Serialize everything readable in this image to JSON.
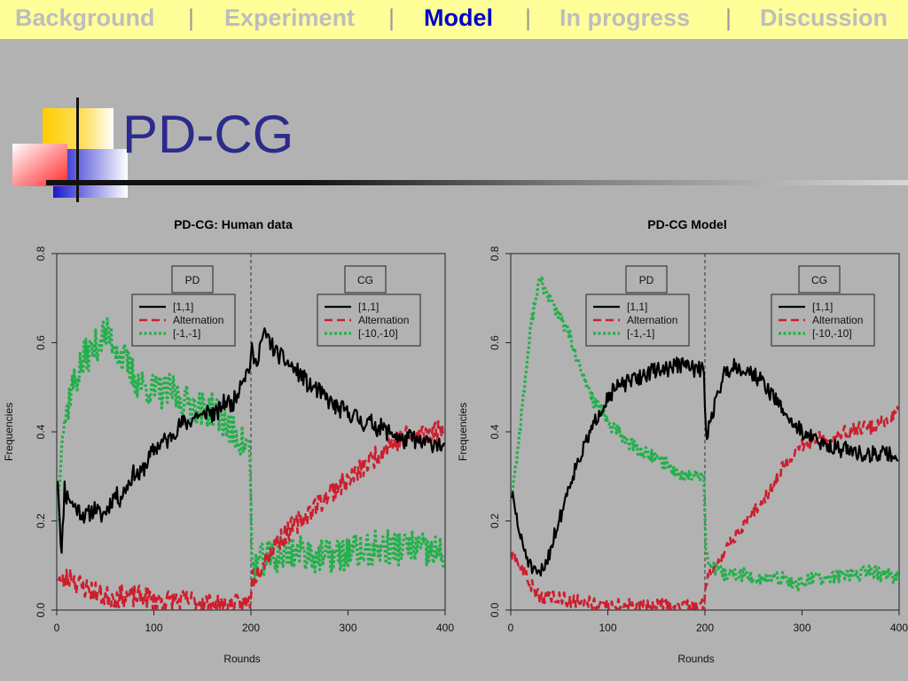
{
  "nav": {
    "items": [
      "Background",
      "Experiment",
      "Model",
      "In progress",
      "Discussion"
    ],
    "active": "Model",
    "separator": "|"
  },
  "slide": {
    "title": "PD-CG"
  },
  "colors": {
    "series1": "#000000",
    "series2": "#cc1f2e",
    "series3": "#22b04a",
    "nav_bg": "#ffff99",
    "nav_active": "#0000cc"
  },
  "chart_data": [
    {
      "type": "line",
      "title": "PD-CG: Human data",
      "xlabel": "Rounds",
      "ylabel": "Frequencies",
      "xlim": [
        0,
        400
      ],
      "ylim": [
        0,
        0.8
      ],
      "xticks": [
        0,
        100,
        200,
        300,
        400
      ],
      "yticks": [
        0.0,
        0.2,
        0.4,
        0.6,
        0.8
      ],
      "divider_x": 200,
      "phase_labels": [
        "PD",
        "CG"
      ],
      "legend_pd": [
        "[1,1]",
        "Alternation",
        "[-1,-1]"
      ],
      "legend_cg": [
        "[1,1]",
        "Alternation",
        "[-10,-10]"
      ],
      "series": [
        {
          "name": "[1,1]",
          "color": "#000000",
          "dash": "solid",
          "noise": 0.02,
          "seed": 11,
          "x": [
            1,
            5,
            8,
            10,
            12,
            15,
            20,
            25,
            30,
            35,
            40,
            45,
            50,
            55,
            60,
            65,
            70,
            75,
            80,
            85,
            90,
            95,
            100,
            105,
            110,
            115,
            120,
            125,
            130,
            135,
            140,
            145,
            150,
            155,
            160,
            165,
            170,
            175,
            180,
            185,
            190,
            195,
            199,
            201,
            205,
            210,
            215,
            220,
            225,
            230,
            235,
            240,
            245,
            250,
            255,
            260,
            265,
            270,
            275,
            280,
            285,
            290,
            295,
            300,
            305,
            310,
            315,
            320,
            325,
            330,
            335,
            340,
            345,
            350,
            355,
            360,
            365,
            370,
            375,
            380,
            385,
            390,
            395,
            399
          ],
          "y": [
            0.3,
            0.12,
            0.28,
            0.25,
            0.26,
            0.24,
            0.23,
            0.22,
            0.21,
            0.22,
            0.23,
            0.21,
            0.22,
            0.24,
            0.26,
            0.25,
            0.27,
            0.29,
            0.31,
            0.3,
            0.32,
            0.34,
            0.36,
            0.37,
            0.38,
            0.38,
            0.4,
            0.41,
            0.42,
            0.42,
            0.43,
            0.44,
            0.43,
            0.45,
            0.44,
            0.44,
            0.46,
            0.47,
            0.46,
            0.48,
            0.52,
            0.53,
            0.55,
            0.58,
            0.55,
            0.6,
            0.62,
            0.6,
            0.58,
            0.57,
            0.56,
            0.55,
            0.54,
            0.53,
            0.52,
            0.5,
            0.5,
            0.49,
            0.48,
            0.47,
            0.46,
            0.45,
            0.45,
            0.44,
            0.44,
            0.43,
            0.42,
            0.42,
            0.42,
            0.41,
            0.41,
            0.4,
            0.4,
            0.39,
            0.38,
            0.38,
            0.39,
            0.38,
            0.37,
            0.38,
            0.37,
            0.38,
            0.37,
            0.36
          ]
        },
        {
          "name": "Alternation",
          "color": "#cc1f2e",
          "dash": "dashed",
          "noise": 0.025,
          "seed": 23,
          "x": [
            1,
            5,
            10,
            15,
            20,
            30,
            40,
            50,
            60,
            70,
            80,
            90,
            100,
            110,
            120,
            130,
            140,
            150,
            160,
            170,
            180,
            190,
            199,
            201,
            205,
            210,
            215,
            220,
            225,
            230,
            240,
            250,
            260,
            270,
            280,
            290,
            300,
            310,
            320,
            330,
            340,
            350,
            360,
            370,
            380,
            390,
            399
          ],
          "y": [
            0.08,
            0.06,
            0.07,
            0.08,
            0.06,
            0.05,
            0.04,
            0.03,
            0.03,
            0.03,
            0.03,
            0.03,
            0.02,
            0.02,
            0.02,
            0.02,
            0.02,
            0.02,
            0.01,
            0.01,
            0.01,
            0.01,
            0.02,
            0.07,
            0.08,
            0.1,
            0.12,
            0.13,
            0.15,
            0.16,
            0.18,
            0.2,
            0.22,
            0.24,
            0.26,
            0.28,
            0.29,
            0.31,
            0.33,
            0.35,
            0.37,
            0.38,
            0.39,
            0.39,
            0.4,
            0.4,
            0.41
          ]
        },
        {
          "name": "[-1,-1]",
          "color": "#22b04a",
          "dash": "dotted",
          "noise": 0.04,
          "seed": 37,
          "x": [
            1,
            5,
            10,
            15,
            20,
            25,
            30,
            35,
            40,
            45,
            50,
            55,
            60,
            65,
            70,
            75,
            80,
            85,
            90,
            95,
            100,
            110,
            120,
            130,
            140,
            150,
            160,
            170,
            180,
            190,
            199,
            201,
            205,
            210,
            220,
            230,
            240,
            250,
            260,
            270,
            280,
            290,
            300,
            310,
            320,
            330,
            340,
            350,
            360,
            370,
            380,
            390,
            399
          ],
          "y": [
            0.22,
            0.4,
            0.44,
            0.5,
            0.52,
            0.55,
            0.57,
            0.58,
            0.59,
            0.61,
            0.62,
            0.61,
            0.6,
            0.57,
            0.56,
            0.54,
            0.52,
            0.51,
            0.5,
            0.5,
            0.49,
            0.49,
            0.49,
            0.47,
            0.46,
            0.45,
            0.45,
            0.43,
            0.4,
            0.38,
            0.36,
            0.1,
            0.1,
            0.11,
            0.12,
            0.12,
            0.13,
            0.13,
            0.13,
            0.12,
            0.12,
            0.12,
            0.13,
            0.13,
            0.13,
            0.14,
            0.14,
            0.14,
            0.14,
            0.14,
            0.13,
            0.13,
            0.12
          ]
        }
      ]
    },
    {
      "type": "line",
      "title": "PD-CG Model",
      "xlabel": "Rounds",
      "ylabel": "Frequencies",
      "xlim": [
        0,
        400
      ],
      "ylim": [
        0,
        0.8
      ],
      "xticks": [
        0,
        100,
        200,
        300,
        400
      ],
      "yticks": [
        0.0,
        0.2,
        0.4,
        0.6,
        0.8
      ],
      "divider_x": 200,
      "phase_labels": [
        "PD",
        "CG"
      ],
      "legend_pd": [
        "[1,1]",
        "Alternation",
        "[-1,-1]"
      ],
      "legend_cg": [
        "[1,1]",
        "Alternation",
        "[-10,-10]"
      ],
      "series": [
        {
          "name": "[1,1]",
          "color": "#000000",
          "dash": "solid",
          "noise": 0.018,
          "seed": 51,
          "x": [
            1,
            5,
            10,
            15,
            20,
            25,
            30,
            35,
            40,
            45,
            50,
            55,
            60,
            65,
            70,
            75,
            80,
            85,
            90,
            95,
            100,
            110,
            120,
            130,
            140,
            150,
            160,
            170,
            180,
            190,
            199,
            201,
            205,
            210,
            215,
            220,
            230,
            240,
            250,
            260,
            270,
            280,
            290,
            300,
            310,
            320,
            330,
            340,
            350,
            360,
            370,
            380,
            390,
            399
          ],
          "y": [
            0.26,
            0.22,
            0.16,
            0.13,
            0.1,
            0.08,
            0.08,
            0.1,
            0.13,
            0.17,
            0.2,
            0.24,
            0.28,
            0.31,
            0.34,
            0.36,
            0.39,
            0.41,
            0.44,
            0.46,
            0.48,
            0.5,
            0.51,
            0.52,
            0.53,
            0.54,
            0.54,
            0.55,
            0.55,
            0.54,
            0.54,
            0.39,
            0.42,
            0.46,
            0.5,
            0.53,
            0.55,
            0.54,
            0.53,
            0.51,
            0.48,
            0.45,
            0.42,
            0.4,
            0.39,
            0.37,
            0.37,
            0.36,
            0.36,
            0.35,
            0.35,
            0.35,
            0.35,
            0.34
          ]
        },
        {
          "name": "Alternation",
          "color": "#cc1f2e",
          "dash": "dashed",
          "noise": 0.015,
          "seed": 63,
          "x": [
            1,
            5,
            10,
            15,
            20,
            25,
            30,
            35,
            40,
            50,
            60,
            70,
            80,
            90,
            100,
            110,
            120,
            130,
            140,
            150,
            160,
            170,
            180,
            190,
            199,
            201,
            205,
            210,
            220,
            230,
            240,
            250,
            260,
            270,
            280,
            290,
            300,
            310,
            320,
            330,
            340,
            350,
            360,
            370,
            380,
            390,
            399
          ],
          "y": [
            0.12,
            0.11,
            0.1,
            0.08,
            0.06,
            0.04,
            0.03,
            0.03,
            0.03,
            0.03,
            0.02,
            0.02,
            0.02,
            0.01,
            0.01,
            0.01,
            0.01,
            0.01,
            0.01,
            0.01,
            0.01,
            0.01,
            0.01,
            0.01,
            0.01,
            0.06,
            0.08,
            0.1,
            0.13,
            0.16,
            0.19,
            0.22,
            0.25,
            0.28,
            0.32,
            0.35,
            0.37,
            0.38,
            0.39,
            0.39,
            0.4,
            0.4,
            0.41,
            0.41,
            0.42,
            0.43,
            0.45
          ]
        },
        {
          "name": "[-1,-1]",
          "color": "#22b04a",
          "dash": "dotted",
          "noise": 0.015,
          "seed": 77,
          "x": [
            1,
            5,
            10,
            15,
            20,
            25,
            30,
            35,
            40,
            45,
            50,
            55,
            60,
            65,
            70,
            75,
            80,
            85,
            90,
            95,
            100,
            110,
            120,
            130,
            140,
            150,
            160,
            170,
            180,
            190,
            199,
            201,
            205,
            210,
            220,
            230,
            240,
            250,
            260,
            270,
            280,
            290,
            300,
            310,
            320,
            330,
            340,
            350,
            360,
            370,
            380,
            390,
            399
          ],
          "y": [
            0.26,
            0.32,
            0.42,
            0.52,
            0.62,
            0.7,
            0.74,
            0.72,
            0.7,
            0.68,
            0.66,
            0.64,
            0.62,
            0.58,
            0.55,
            0.52,
            0.5,
            0.47,
            0.46,
            0.44,
            0.42,
            0.4,
            0.38,
            0.36,
            0.35,
            0.34,
            0.33,
            0.31,
            0.3,
            0.3,
            0.31,
            0.13,
            0.1,
            0.09,
            0.08,
            0.08,
            0.08,
            0.07,
            0.07,
            0.07,
            0.07,
            0.06,
            0.06,
            0.07,
            0.07,
            0.07,
            0.08,
            0.08,
            0.08,
            0.09,
            0.08,
            0.08,
            0.07
          ]
        }
      ]
    }
  ]
}
